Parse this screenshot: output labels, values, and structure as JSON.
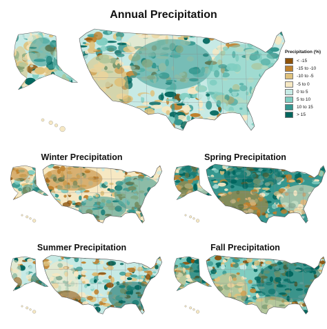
{
  "titles": {
    "main": "Annual Precipitation",
    "winter": "Winter Precipitation",
    "spring": "Spring Precipitation",
    "summer": "Summer Precipitation",
    "fall": "Fall Precipitation"
  },
  "legend": {
    "title": "Precipitation (%)",
    "items": [
      {
        "label": "< -15",
        "color": "#8c510a"
      },
      {
        "label": "-15 to -10",
        "color": "#bf812d"
      },
      {
        "label": "-10 to -5",
        "color": "#dfc27d"
      },
      {
        "label": "-5 to 0",
        "color": "#f6e8c3"
      },
      {
        "label": "0 to 5",
        "color": "#c7eae5"
      },
      {
        "label": "5 to 10",
        "color": "#80cdc1"
      },
      {
        "label": "10 to 15",
        "color": "#35978f"
      },
      {
        "label": "> 15",
        "color": "#01665e"
      }
    ]
  }
}
